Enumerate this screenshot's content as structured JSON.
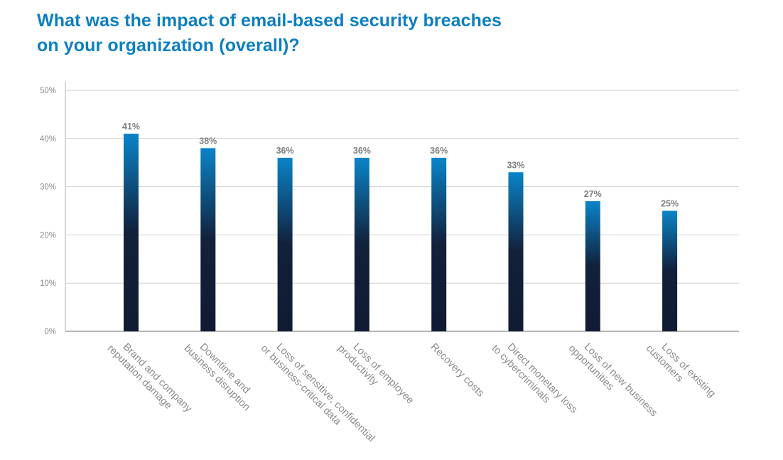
{
  "title": [
    "What was the impact of email-based security breaches",
    "on your organization (overall)?"
  ],
  "chart_data": {
    "type": "bar",
    "title": "What was the impact of email-based security breaches on your organization (overall)?",
    "categories": [
      [
        "Brand and company",
        "reputation damage"
      ],
      [
        "Downtime and",
        "business disruption"
      ],
      [
        "Loss of sensitive, confidential",
        "or business-critical data"
      ],
      [
        "Loss of employee",
        "productivity"
      ],
      [
        "Recovery costs"
      ],
      [
        "Direct monetary loss",
        "to cybercriminals"
      ],
      [
        "Loss of new business",
        "opportunities"
      ],
      [
        "Loss of existing",
        "customers"
      ]
    ],
    "values": [
      41,
      38,
      36,
      36,
      36,
      33,
      27,
      25
    ],
    "data_labels": [
      "41%",
      "38%",
      "36%",
      "36%",
      "36%",
      "33%",
      "27%",
      "25%"
    ],
    "ylim": [
      0,
      50
    ],
    "yticks": [
      0,
      10,
      20,
      30,
      40,
      50
    ],
    "ytick_labels": [
      "0%",
      "10%",
      "20%",
      "30%",
      "40%",
      "50%"
    ],
    "grid": true,
    "bar_gradient": [
      "#0a84c8",
      "#12203a",
      "#111b33"
    ],
    "title_color": "#0b7fc1"
  }
}
